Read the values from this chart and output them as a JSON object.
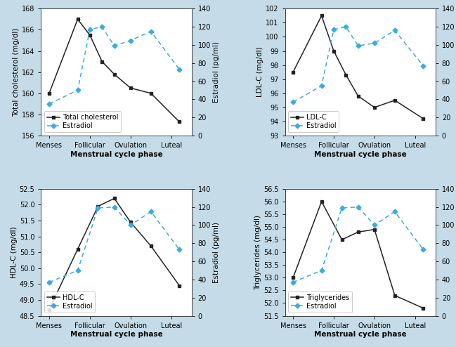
{
  "background_color": "#c5dce8",
  "plot_bg": "#ffffff",
  "x_labels": [
    "Menses",
    "Follicular",
    "Ovulation",
    "Luteal"
  ],
  "x_ticks": [
    0,
    1,
    2,
    3
  ],
  "total_chol": {
    "x": [
      0,
      0.7,
      1.0,
      1.3,
      1.6,
      2.0,
      2.5,
      3.2
    ],
    "y": [
      160.0,
      167.0,
      165.5,
      163.0,
      161.8,
      160.5,
      160.0,
      157.3
    ],
    "ylabel": "Total cholesterol (mg/dl)",
    "ylim": [
      156,
      168
    ],
    "yticks": [
      156,
      158,
      160,
      162,
      164,
      166,
      168
    ],
    "legend_label": "Total cholesterol"
  },
  "estradiol_tc": {
    "x": [
      0,
      0.7,
      1.0,
      1.3,
      1.6,
      2.0,
      2.5,
      3.2
    ],
    "y": [
      35,
      50,
      117,
      120,
      99,
      105,
      115,
      73
    ]
  },
  "ldl": {
    "x": [
      0,
      0.7,
      1.0,
      1.3,
      1.6,
      2.0,
      2.5,
      3.2
    ],
    "y": [
      97.5,
      101.5,
      99.0,
      97.3,
      95.8,
      95.0,
      95.5,
      94.2
    ],
    "ylabel": "LDL-C (mg/dl)",
    "ylim": [
      93,
      102
    ],
    "yticks": [
      93,
      94,
      95,
      96,
      97,
      98,
      99,
      100,
      101,
      102
    ],
    "legend_label": "LDL-C"
  },
  "estradiol_ldl": {
    "x": [
      0,
      0.7,
      1.0,
      1.3,
      1.6,
      2.0,
      2.5,
      3.2
    ],
    "y": [
      37,
      55,
      117,
      120,
      99,
      102,
      116,
      77
    ]
  },
  "hdl": {
    "x": [
      0,
      0.7,
      1.2,
      1.6,
      2.0,
      2.5,
      3.2
    ],
    "y": [
      48.7,
      50.6,
      51.95,
      52.2,
      51.45,
      50.7,
      49.45
    ],
    "ylabel": "HDL-C (mg/dl)",
    "ylim": [
      48.5,
      52.5
    ],
    "yticks": [
      48.5,
      49.0,
      49.5,
      50.0,
      50.5,
      51.0,
      51.5,
      52.0,
      52.5
    ],
    "legend_label": "HDL-C"
  },
  "estradiol_hdl": {
    "x": [
      0,
      0.7,
      1.2,
      1.6,
      2.0,
      2.5,
      3.2
    ],
    "y": [
      37,
      50,
      119,
      120,
      100,
      115,
      73
    ]
  },
  "trig": {
    "x": [
      0,
      0.7,
      1.2,
      1.6,
      2.0,
      2.5,
      3.2
    ],
    "y": [
      53.0,
      56.0,
      54.5,
      54.8,
      54.9,
      52.3,
      51.8
    ],
    "ylabel": "Triglycerides (mg/dl)",
    "ylim": [
      51.5,
      56.5
    ],
    "yticks": [
      51.5,
      52.0,
      52.5,
      53.0,
      53.5,
      54.0,
      54.5,
      55.0,
      55.5,
      56.0,
      56.5
    ],
    "legend_label": "Triglycerides"
  },
  "estradiol_trig": {
    "x": [
      0,
      0.7,
      1.2,
      1.6,
      2.0,
      2.5,
      3.2
    ],
    "y": [
      37,
      50,
      119,
      120,
      100,
      115,
      73
    ]
  },
  "line_color": "#222222",
  "estradiol_color": "#3aace0",
  "estradiol_ylim": [
    0,
    140
  ],
  "estradiol_yticks": [
    0,
    20,
    40,
    60,
    80,
    100,
    120,
    140
  ],
  "estradiol_ylabel": "Estradiol (pg/ml)",
  "xlabel": "Menstrual cycle phase",
  "axis_fontsize": 7.5,
  "tick_fontsize": 7,
  "legend_fontsize": 7,
  "xlim": [
    -0.2,
    3.5
  ]
}
